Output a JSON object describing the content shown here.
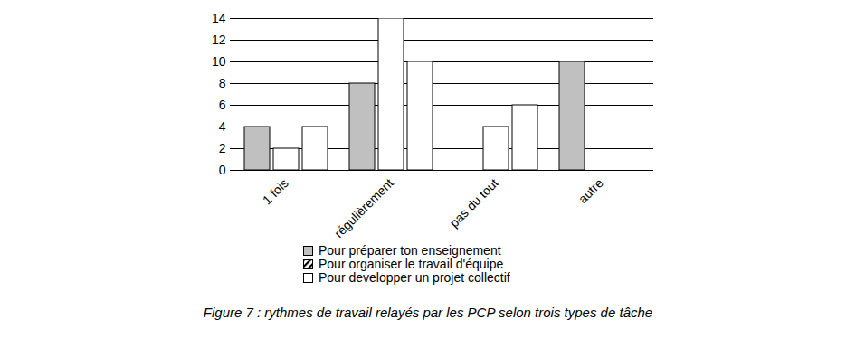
{
  "chart_data": {
    "type": "bar",
    "title": "Figure 7 : rythmes de travail relayés par les PCP selon trois types de tâche",
    "categories": [
      "1 fois",
      "régulièrement",
      "pas du tout",
      "autre"
    ],
    "series": [
      {
        "name": "Pour préparer ton enseignement",
        "color": "#c0c0c0",
        "values": [
          4,
          8,
          null,
          10
        ]
      },
      {
        "name": "Pour organiser le travail d'équipe",
        "color": "#000000",
        "line_style": "hatched",
        "values": [
          2,
          14,
          4,
          null
        ]
      },
      {
        "name": "Pour developper un projet collectif",
        "color": "#ffffff",
        "values": [
          4,
          10,
          6,
          null
        ]
      }
    ],
    "ylim": [
      0,
      14
    ],
    "yticks": [
      0,
      2,
      4,
      6,
      8,
      10,
      12,
      14
    ],
    "grid": true
  }
}
